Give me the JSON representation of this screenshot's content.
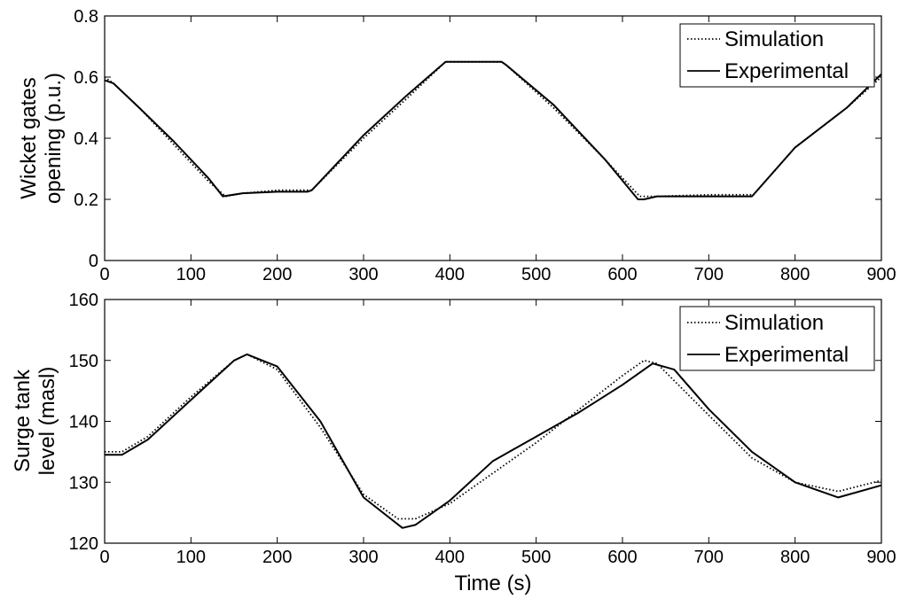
{
  "chart_data": [
    {
      "type": "line",
      "title": "",
      "xlabel": "",
      "ylabel": [
        "Wicket gates",
        "opening (p.u.)"
      ],
      "xlim": [
        0,
        900
      ],
      "ylim": [
        0,
        0.8
      ],
      "xticks": [
        0,
        100,
        200,
        300,
        400,
        500,
        600,
        700,
        800,
        900
      ],
      "yticks": [
        0,
        0.2,
        0.4,
        0.6,
        0.8
      ],
      "yticklabels": [
        "0",
        "0.2",
        "0.4",
        "0.6",
        "0.8"
      ],
      "grid": false,
      "legend_position": "top-right",
      "series": [
        {
          "name": "Simulation",
          "style": "dotted",
          "x": [
            0,
            10,
            40,
            80,
            120,
            140,
            160,
            200,
            235,
            240,
            300,
            350,
            395,
            460,
            465,
            520,
            580,
            620,
            640,
            700,
            748,
            752,
            800,
            860,
            900
          ],
          "y": [
            0.6,
            0.58,
            0.5,
            0.38,
            0.26,
            0.21,
            0.22,
            0.23,
            0.23,
            0.23,
            0.4,
            0.53,
            0.65,
            0.65,
            0.64,
            0.5,
            0.33,
            0.21,
            0.21,
            0.215,
            0.215,
            0.215,
            0.37,
            0.5,
            0.6
          ]
        },
        {
          "name": "Experimental",
          "style": "solid",
          "x": [
            0,
            10,
            40,
            80,
            120,
            137,
            160,
            200,
            235,
            240,
            300,
            350,
            395,
            460,
            465,
            520,
            580,
            618,
            625,
            640,
            700,
            745,
            750,
            800,
            860,
            900
          ],
          "y": [
            0.59,
            0.58,
            0.5,
            0.39,
            0.27,
            0.21,
            0.22,
            0.225,
            0.225,
            0.23,
            0.41,
            0.54,
            0.65,
            0.65,
            0.64,
            0.51,
            0.33,
            0.2,
            0.2,
            0.21,
            0.21,
            0.21,
            0.21,
            0.37,
            0.5,
            0.61
          ]
        }
      ]
    },
    {
      "type": "line",
      "title": "",
      "xlabel": "Time (s)",
      "ylabel": [
        "Surge tank",
        "level (masl)"
      ],
      "xlim": [
        0,
        900
      ],
      "ylim": [
        120,
        160
      ],
      "xticks": [
        0,
        100,
        200,
        300,
        400,
        500,
        600,
        700,
        800,
        900
      ],
      "yticks": [
        120,
        130,
        140,
        150,
        160
      ],
      "yticklabels": [
        "120",
        "130",
        "140",
        "150",
        "160"
      ],
      "grid": false,
      "legend_position": "top-right",
      "series": [
        {
          "name": "Simulation",
          "style": "dotted",
          "x": [
            0,
            20,
            50,
            100,
            150,
            165,
            200,
            250,
            300,
            340,
            360,
            400,
            450,
            500,
            550,
            600,
            625,
            640,
            700,
            750,
            800,
            850,
            900
          ],
          "y": [
            135,
            135,
            137.5,
            144,
            150,
            151,
            148.5,
            139,
            128,
            124,
            124,
            126.5,
            131.5,
            136.5,
            142,
            147.5,
            150,
            149.5,
            141,
            134,
            130,
            128.5,
            130.3
          ]
        },
        {
          "name": "Experimental",
          "style": "solid",
          "x": [
            0,
            20,
            50,
            100,
            150,
            165,
            200,
            250,
            300,
            345,
            360,
            400,
            450,
            500,
            550,
            600,
            635,
            660,
            700,
            750,
            800,
            850,
            900
          ],
          "y": [
            134.5,
            134.5,
            137,
            143.5,
            150,
            151,
            149,
            140,
            127.5,
            122.5,
            123,
            127,
            133.5,
            137.5,
            141.5,
            146,
            149.5,
            148.5,
            142,
            135,
            130,
            127.5,
            129.5
          ]
        }
      ]
    }
  ]
}
